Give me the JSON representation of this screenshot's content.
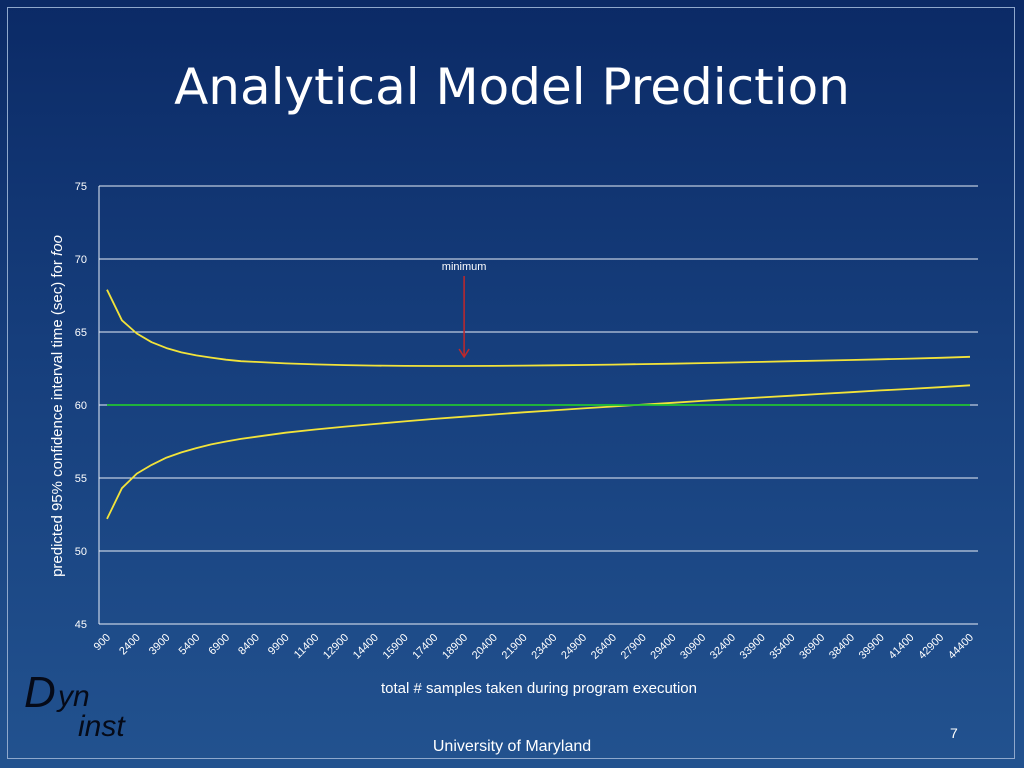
{
  "slide": {
    "title": "Analytical Model Prediction",
    "footer": "University of Maryland",
    "page_number": "7",
    "logo": {
      "d": "D",
      "yn": "yn",
      "inst": "inst"
    }
  },
  "colors": {
    "curve": "#f2e33a",
    "target_line": "#22c233",
    "grid": "#e8eef8",
    "arrow": "#c0282a"
  },
  "chart_data": {
    "type": "line",
    "title": "",
    "xlabel": "total # samples taken during program execution",
    "ylabel_main": "predicted 95% confidence interval time (sec) for ",
    "ylabel_italic": "foo",
    "ylim": [
      45,
      75
    ],
    "yticks": [
      45,
      50,
      55,
      60,
      65,
      70,
      75
    ],
    "grid": true,
    "x_tick_labels": [
      "900",
      "2400",
      "3900",
      "5400",
      "6900",
      "8400",
      "9900",
      "11400",
      "12900",
      "14400",
      "15900",
      "17400",
      "18900",
      "20400",
      "21900",
      "23400",
      "24900",
      "26400",
      "27900",
      "29400",
      "30900",
      "32400",
      "33900",
      "35400",
      "36900",
      "38400",
      "39900",
      "41400",
      "42900",
      "44400"
    ],
    "series": [
      {
        "x": [
          900,
          1650,
          2400,
          3150,
          3900,
          4650,
          5400,
          6150,
          6900,
          7650,
          8400,
          9900,
          11400,
          12900,
          14400,
          15900,
          17400,
          18900,
          20400,
          21900,
          23400,
          24900,
          26400,
          27900,
          29400,
          30900,
          32400,
          33900,
          35400,
          36900,
          38400,
          39900,
          41400,
          42900,
          44400
        ],
        "values": [
          67.9,
          65.8,
          64.9,
          64.3,
          63.9,
          63.6,
          63.4,
          63.25,
          63.1,
          63.0,
          62.95,
          62.85,
          62.78,
          62.73,
          62.7,
          62.68,
          62.67,
          62.67,
          62.68,
          62.7,
          62.72,
          62.74,
          62.77,
          62.8,
          62.83,
          62.87,
          62.91,
          62.95,
          63.0,
          63.04,
          63.08,
          63.13,
          63.18,
          63.23,
          63.3
        ]
      },
      {
        "x": [
          900,
          1650,
          2400,
          3150,
          3900,
          4650,
          5400,
          6150,
          6900,
          7650,
          8400,
          9900,
          11400,
          12900,
          14400,
          15900,
          17400,
          18900,
          20400,
          21900,
          23400,
          24900,
          26400,
          27900,
          29400,
          30900,
          32400,
          33900,
          35400,
          36900,
          38400,
          39900,
          41400,
          42900,
          44400
        ],
        "values": [
          52.2,
          54.3,
          55.3,
          55.9,
          56.4,
          56.75,
          57.05,
          57.3,
          57.5,
          57.68,
          57.82,
          58.1,
          58.32,
          58.52,
          58.7,
          58.88,
          59.05,
          59.2,
          59.35,
          59.5,
          59.63,
          59.77,
          59.9,
          60.03,
          60.15,
          60.28,
          60.4,
          60.52,
          60.64,
          60.76,
          60.88,
          61.0,
          61.1,
          61.22,
          61.35
        ]
      },
      {
        "x": [
          900,
          44400
        ],
        "values": [
          60,
          60
        ]
      }
    ],
    "annotations": [
      {
        "text": "minimum",
        "x": 18900,
        "y": 62.67
      }
    ]
  }
}
